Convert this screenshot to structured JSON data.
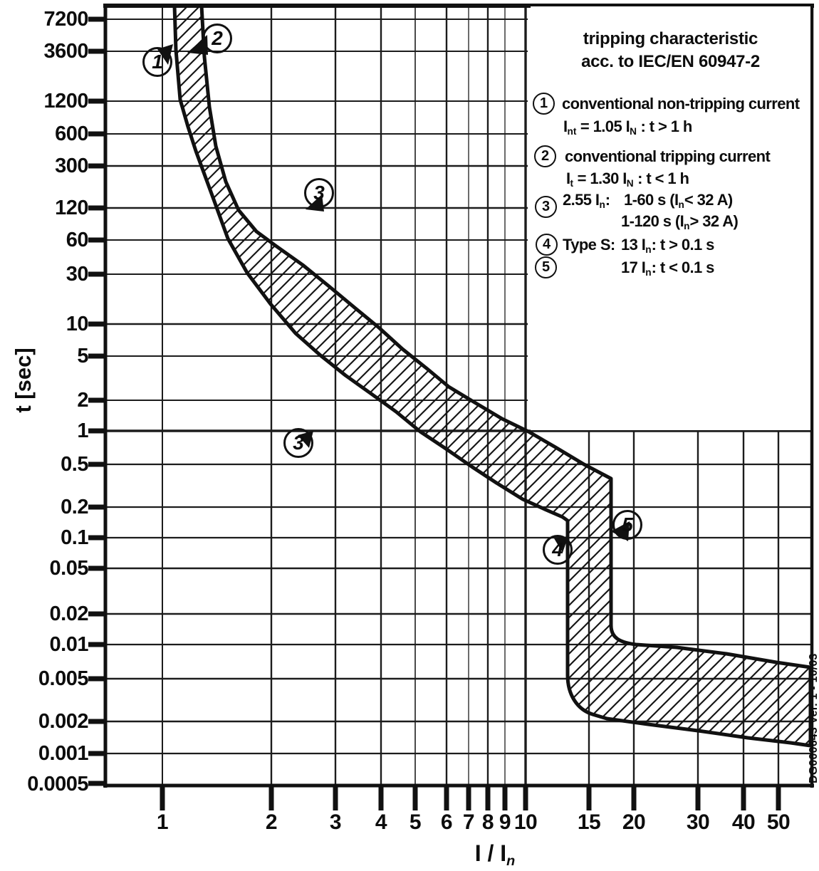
{
  "title": {
    "line1": "tripping characteristic",
    "line2": "acc. to IEC/EN 60947-2"
  },
  "legend": {
    "items": [
      {
        "num": "1",
        "line1": "conventional non-tripping current",
        "line2": [
          {
            "t": "I"
          },
          {
            "s": "nt"
          },
          {
            "t": " = 1.05 I"
          },
          {
            "s": "N"
          },
          {
            "t": " : t > 1 h"
          }
        ]
      },
      {
        "num": "2",
        "line1": "conventional tripping current",
        "line2": [
          {
            "t": "I"
          },
          {
            "s": "t"
          },
          {
            "t": " = 1.30 I"
          },
          {
            "s": "N"
          },
          {
            "t": " : t < 1 h"
          }
        ]
      },
      {
        "num": "3",
        "label": [
          {
            "t": "2.55 I"
          },
          {
            "s": "n"
          },
          {
            "t": ":"
          }
        ],
        "line1": [
          {
            "t": "1-60 s (I"
          },
          {
            "s": "n"
          },
          {
            "t": "< 32 A)"
          }
        ],
        "line2": [
          {
            "t": "1-120 s (I"
          },
          {
            "s": "n"
          },
          {
            "t": "> 32 A)"
          }
        ]
      },
      {
        "num": "4",
        "label": [
          {
            "t": "Type S:"
          }
        ],
        "line1": [
          {
            "t": "13 I"
          },
          {
            "s": "n"
          },
          {
            "t": ": t > 0.1 s"
          }
        ]
      },
      {
        "num": "5",
        "line1": [
          {
            "t": "17 I"
          },
          {
            "s": "n"
          },
          {
            "t": ": t < 0.1 s"
          }
        ]
      }
    ]
  },
  "axes": {
    "y": {
      "label": "t [sec]",
      "ticks": [
        "7200",
        "3600",
        "1200",
        "600",
        "300",
        "120",
        "60",
        "30",
        "10",
        "5",
        "2",
        "1",
        "0.5",
        "0.2",
        "0.1",
        "0.05",
        "0.02",
        "0.01",
        "0.005",
        "0.002",
        "0.001",
        "0.0005"
      ]
    },
    "x": {
      "label_fragments": [
        {
          "t": "I / I"
        },
        {
          "s": "n"
        }
      ],
      "ticks": [
        "1",
        "2",
        "3",
        "4",
        "5",
        "6",
        "7",
        "8",
        "9",
        "10",
        "15",
        "20",
        "30",
        "40",
        "50"
      ]
    }
  },
  "annotations": {
    "markers": [
      {
        "num": "1",
        "meaning": "conventional non-tripping current"
      },
      {
        "num": "2",
        "meaning": "conventional tripping current"
      },
      {
        "num": "3",
        "meaning": "thermal test current region (upper)"
      },
      {
        "num": "3",
        "meaning": "thermal test current region (lower)"
      },
      {
        "num": "4",
        "meaning": "13 In step"
      },
      {
        "num": "5",
        "meaning": "17 In step"
      }
    ]
  },
  "corner_note": "DG000643   Ver. 1 - 10/03",
  "chart_data": {
    "type": "area",
    "title": "tripping characteristic acc. to IEC/EN 60947-2",
    "xlabel": "I / In",
    "ylabel": "t [sec]",
    "x_scale": "log",
    "y_scale": "log",
    "xlim": [
      0.75,
      61
    ],
    "ylim": [
      0.0005,
      10000
    ],
    "x_ticks": [
      1,
      2,
      3,
      4,
      5,
      6,
      7,
      8,
      9,
      10,
      15,
      20,
      30,
      40,
      50
    ],
    "y_ticks": [
      7200,
      3600,
      1200,
      600,
      300,
      120,
      60,
      30,
      10,
      5,
      2,
      1,
      0.5,
      0.2,
      0.1,
      0.05,
      0.02,
      0.01,
      0.005,
      0.002,
      0.001,
      0.0005
    ],
    "grid": true,
    "legend_position": "top-right panel",
    "band": {
      "name": "tripping band (hatched region between min and max boundary)",
      "lower_boundary_points": [
        [
          1.05,
          7200
        ],
        [
          1.08,
          2000
        ],
        [
          1.12,
          1200
        ],
        [
          1.24,
          245
        ],
        [
          1.3,
          120
        ],
        [
          1.45,
          58
        ],
        [
          1.62,
          30
        ],
        [
          1.8,
          15.6
        ],
        [
          2.05,
          10
        ],
        [
          2.36,
          6.1
        ],
        [
          2.9,
          3.6
        ],
        [
          3.24,
          2.9
        ],
        [
          3.9,
          1.9
        ],
        [
          4.5,
          1.4
        ],
        [
          5.2,
          0.97
        ],
        [
          6.1,
          0.65
        ],
        [
          7.1,
          0.47
        ],
        [
          8.3,
          0.33
        ],
        [
          9.8,
          0.23
        ],
        [
          11.5,
          0.17
        ],
        [
          13,
          0.146
        ],
        [
          13,
          0.0053
        ],
        [
          14.2,
          0.003
        ],
        [
          16.7,
          0.0021
        ],
        [
          21.7,
          0.0019
        ],
        [
          29.9,
          0.0016
        ],
        [
          43,
          0.0014
        ],
        [
          53.8,
          0.00125
        ],
        [
          61,
          0.0012
        ]
      ],
      "upper_boundary_points": [
        [
          1.3,
          7200
        ],
        [
          1.35,
          1035
        ],
        [
          1.49,
          209
        ],
        [
          1.62,
          113
        ],
        [
          1.81,
          72
        ],
        [
          2.05,
          53
        ],
        [
          2.43,
          35
        ],
        [
          2.87,
          22
        ],
        [
          3.39,
          14
        ],
        [
          3.95,
          9.1
        ],
        [
          4.58,
          5.8
        ],
        [
          5.37,
          3.8
        ],
        [
          6.14,
          2.6
        ],
        [
          7.3,
          1.8
        ],
        [
          8.6,
          1.3
        ],
        [
          10.2,
          1.0
        ],
        [
          12.1,
          0.7
        ],
        [
          14.5,
          0.49
        ],
        [
          17,
          0.36
        ],
        [
          17,
          0.0155
        ],
        [
          20,
          0.01
        ],
        [
          28.8,
          0.009
        ],
        [
          45,
          0.0073
        ],
        [
          61,
          0.0063
        ]
      ],
      "rules": {
        "conventional_non_tripping": "Int = 1.05 IN : t > 1 h",
        "conventional_tripping": "It = 1.30 IN : t < 1 h",
        "thermal_test": "2.55 In: 1-60 s (In < 32 A), 1-120 s (In > 32 A)",
        "type_s_min": "13 In : t > 0.1 s",
        "type_s_max": "17 In : t < 0.1 s"
      }
    }
  }
}
